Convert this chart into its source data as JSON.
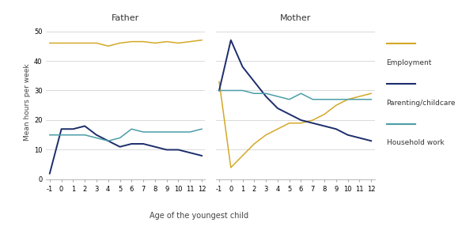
{
  "ages": [
    -1,
    0,
    1,
    2,
    3,
    4,
    5,
    6,
    7,
    8,
    9,
    10,
    11,
    12
  ],
  "father": {
    "employment": [
      46,
      46,
      46,
      46,
      46,
      45,
      46,
      46.5,
      46.5,
      46,
      46.5,
      46,
      46.5,
      47
    ],
    "parenting": [
      2,
      17,
      17,
      18,
      15,
      13,
      11,
      12,
      12,
      11,
      10,
      10,
      9,
      8
    ],
    "household": [
      15,
      15,
      15,
      15,
      14,
      13,
      14,
      17,
      16,
      16,
      16,
      16,
      16,
      17
    ]
  },
  "mother": {
    "employment": [
      33,
      4,
      8,
      12,
      15,
      17,
      19,
      19,
      20,
      22,
      25,
      27,
      28,
      29
    ],
    "parenting": [
      30,
      47,
      38,
      33,
      28,
      24,
      22,
      20,
      19,
      18,
      17,
      15,
      14,
      13
    ],
    "household": [
      30,
      30,
      30,
      29,
      29,
      28,
      27,
      29,
      27,
      27,
      27,
      27,
      27,
      27
    ]
  },
  "colors": {
    "employment": "#D4A827",
    "parenting": "#1C2D6B",
    "household": "#4A9DA8"
  },
  "title_father": "Father",
  "title_mother": "Mother",
  "ylabel": "Mean hours per week",
  "xlabel": "Age of the youngest child",
  "legend_labels": [
    "Employment",
    "Parenting/childcare",
    "Household work"
  ],
  "ylim": [
    0,
    52
  ],
  "yticks": [
    0,
    10,
    20,
    30,
    40,
    50
  ],
  "background_color": "#ffffff"
}
